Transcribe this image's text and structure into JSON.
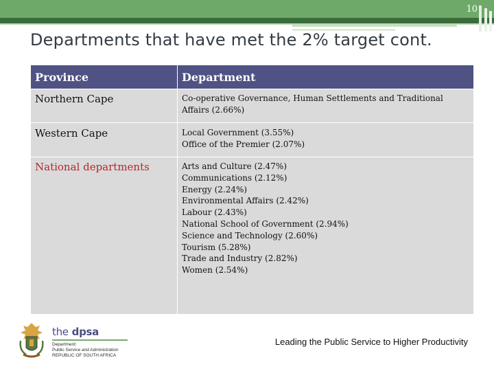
{
  "slide_number": "10",
  "title": "Departments that have met the 2% target cont.",
  "table": {
    "headers": [
      "Province",
      "Department"
    ],
    "rows": [
      {
        "province": "Northern Cape",
        "departments": [
          "Co-operative Governance, Human Settlements and Traditional Affairs (2.66%)"
        ]
      },
      {
        "province": "Western Cape",
        "departments": [
          "Local Government (3.55%)",
          "Office of the Premier (2.07%)"
        ]
      },
      {
        "province": "National departments",
        "departments": [
          "Arts and Culture (2.47%)",
          "Communications (2.12%)",
          "Energy (2.24%)",
          "Environmental Affairs (2.42%)",
          "Labour (2.43%)",
          "National School of Government (2.94%)",
          "Science and Technology (2.60%)",
          "Tourism (5.28%)",
          "Trade and Industry (2.82%)",
          "Women (2.54%)"
        ]
      }
    ]
  },
  "logo": {
    "name_prefix": "the",
    "name": "dpsa",
    "lines": [
      "Department:",
      "Public Service and Administration",
      "REPUBLIC OF SOUTH AFRICA"
    ]
  },
  "footer": "Leading the Public Service to Higher Productivity",
  "colors": {
    "header_bg": "#4f5283",
    "cell_bg": "#dadada",
    "accent_red": "#b3282b",
    "topbar_green": "#6fa96a"
  }
}
